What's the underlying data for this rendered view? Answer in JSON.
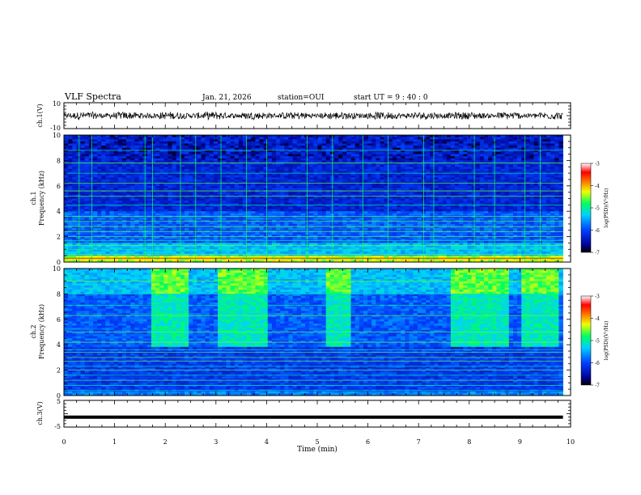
{
  "header": {
    "title": "VLF Spectra",
    "date": "Jan. 21, 2026",
    "station": "station=OUI",
    "start": "start UT =  9 : 40 : 0"
  },
  "colors": {
    "background": "#ffffff",
    "ink": "#000000",
    "colormap": [
      "#000000",
      "#000080",
      "#0040ff",
      "#00c0ff",
      "#00ff80",
      "#ffff00",
      "#ff8000",
      "#ff0000",
      "#ffffff"
    ]
  },
  "chart_data": [
    {
      "id": "ch1_waveform",
      "type": "line",
      "ylabel": "ch.1(V)",
      "ylim": [
        -10,
        10
      ],
      "yticks": [
        10,
        -10
      ],
      "ytick_labels": [
        "10",
        "-10"
      ],
      "description_values": {
        "center_V": 0,
        "amplitude_V": 2.5
      }
    },
    {
      "id": "ch1_spectrogram",
      "type": "heatmap",
      "ylabel_line1": "ch.1",
      "ylabel_line2": "Frequency (kHz)",
      "ylim": [
        0,
        10
      ],
      "yticks": [
        0,
        2,
        4,
        6,
        8,
        10
      ],
      "ytick_labels": [
        "0",
        "2",
        "4",
        "6",
        "8",
        "10"
      ],
      "colorbar": {
        "label": "log(PSD)(V²/Hz)",
        "range": [
          -7,
          -3
        ],
        "ticks": [
          "-3",
          "-4",
          "-5",
          "-6",
          "-7"
        ]
      },
      "bands_kHz": [
        0.3,
        0.6,
        1.0,
        1.3,
        1.7,
        2.0,
        2.4,
        2.8,
        3.2,
        3.6,
        4.5,
        5.2,
        5.6,
        6.2,
        7.0,
        7.8,
        8.8
      ],
      "sferic_times_min": [
        0.3,
        0.55,
        1.6,
        1.75,
        2.3,
        2.6,
        3.1,
        3.6,
        4.0,
        4.8,
        5.3,
        5.9,
        6.4,
        7.1,
        7.3,
        8.1,
        8.5,
        9.1,
        9.4
      ]
    },
    {
      "id": "ch2_spectrogram",
      "type": "heatmap",
      "ylabel_line1": "ch.2",
      "ylabel_line2": "Frequency (kHz)",
      "ylim": [
        0,
        10
      ],
      "yticks": [
        0,
        2,
        4,
        6,
        8,
        10
      ],
      "ytick_labels": [
        "0",
        "2",
        "4",
        "6",
        "8",
        "10"
      ],
      "colorbar": {
        "label": "log(PSD)(V²/Hz)",
        "range": [
          -7,
          -3
        ],
        "ticks": [
          "-3",
          "-4",
          "-5",
          "-6",
          "-7"
        ]
      },
      "bands_kHz": [
        0.4,
        0.8,
        1.2,
        1.6,
        2.0,
        2.3,
        2.7,
        3.0,
        3.4,
        3.6,
        4.2,
        5.0,
        6.3,
        7.1,
        8.0,
        9.0
      ],
      "bright_blocks_min": [
        [
          1.7,
          2.45
        ],
        [
          3.0,
          4.0
        ],
        [
          5.2,
          5.7
        ],
        [
          7.6,
          8.8
        ],
        [
          9.0,
          9.8
        ]
      ]
    },
    {
      "id": "ch3_waveform",
      "type": "line",
      "ylabel": "ch.3(V)",
      "ylim": [
        -5,
        5
      ],
      "yticks": [
        5,
        0,
        -5
      ],
      "ytick_labels": [
        "5",
        "-5"
      ],
      "x": [
        0,
        9.85
      ],
      "y": [
        -1.3,
        -1.3
      ]
    }
  ],
  "xaxis": {
    "label": "Time (min)",
    "xlim": [
      0,
      10
    ],
    "ticks": [
      0,
      1,
      2,
      3,
      4,
      5,
      6,
      7,
      8,
      9,
      10
    ],
    "tick_labels": [
      "0",
      "1",
      "2",
      "3",
      "4",
      "5",
      "6",
      "7",
      "8",
      "9",
      "10"
    ],
    "data_end_min": 9.85
  }
}
